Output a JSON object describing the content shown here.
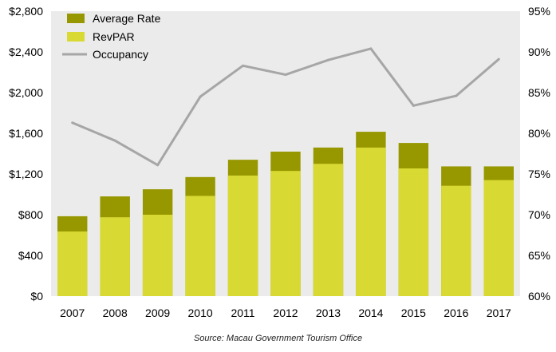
{
  "chart_data": {
    "type": "bar",
    "categories": [
      "2007",
      "2008",
      "2009",
      "2010",
      "2011",
      "2012",
      "2013",
      "2014",
      "2015",
      "2016",
      "2017"
    ],
    "series": [
      {
        "name": "Average Rate",
        "kind": "bar-total",
        "color": "#979700",
        "values": [
          785,
          980,
          1050,
          1170,
          1340,
          1420,
          1460,
          1615,
          1505,
          1275,
          1275
        ]
      },
      {
        "name": "RevPAR",
        "kind": "bar",
        "color": "#d9d933",
        "values": [
          635,
          775,
          800,
          985,
          1185,
          1230,
          1300,
          1460,
          1255,
          1085,
          1140
        ]
      },
      {
        "name": "Occupancy",
        "kind": "line",
        "axis": "right",
        "color": "#a6a6a6",
        "values": [
          81.3,
          79.1,
          76.1,
          84.5,
          88.3,
          87.2,
          89.0,
          90.4,
          83.4,
          84.6,
          89.1
        ]
      }
    ],
    "left_axis": {
      "ylim": [
        0,
        2800
      ],
      "ticks": [
        0,
        400,
        800,
        1200,
        1600,
        2000,
        2400,
        2800
      ],
      "tick_labels": [
        "$0",
        "$400",
        "$800",
        "$1,200",
        "$1,600",
        "$2,000",
        "$2,400",
        "$2,800"
      ]
    },
    "right_axis": {
      "ylim": [
        60,
        95
      ],
      "ticks": [
        60,
        65,
        70,
        75,
        80,
        85,
        90,
        95
      ],
      "tick_labels": [
        "60%",
        "65%",
        "70%",
        "75%",
        "80%",
        "85%",
        "90%",
        "95%"
      ]
    },
    "legend": {
      "placement": "top-left",
      "entries": [
        "Average Rate",
        "RevPAR",
        "Occupancy"
      ]
    },
    "grid": false,
    "plot_background": "#ebebeb"
  },
  "source_note": "Source: Macau Government Tourism Office"
}
